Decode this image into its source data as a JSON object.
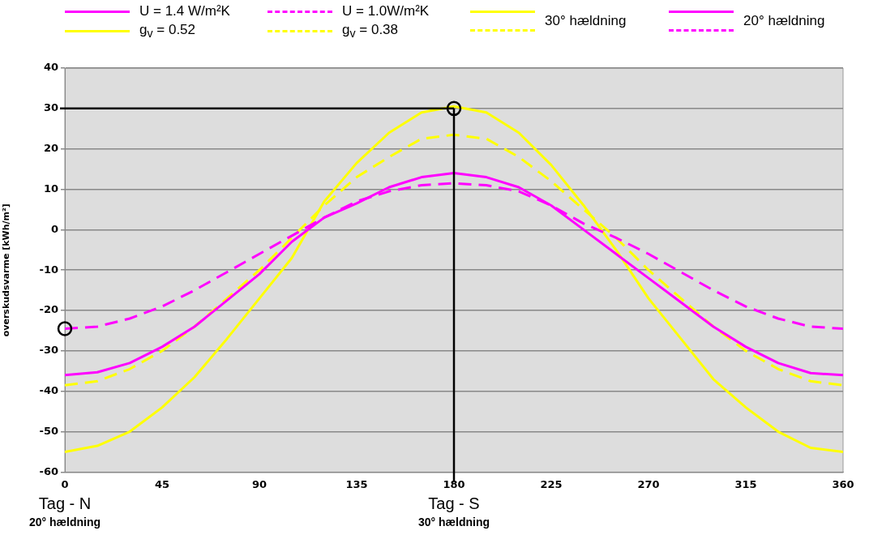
{
  "chart_data": {
    "type": "line",
    "ylabel": "overskudsvarme [kWh/m²]",
    "x": [
      0,
      15,
      30,
      45,
      60,
      75,
      90,
      105,
      120,
      135,
      150,
      165,
      180,
      195,
      210,
      225,
      240,
      255,
      270,
      285,
      300,
      315,
      330,
      345,
      360
    ],
    "series": [
      {
        "name": "U = 1.4 W/m²K",
        "color": "#ff00ff",
        "line_style": "solid",
        "values": [
          -36,
          -35.3,
          -33,
          -29,
          -24,
          -17.5,
          -11,
          -3,
          3,
          6.5,
          10.5,
          13,
          14,
          13,
          10.5,
          6,
          0,
          -6,
          -12,
          -18,
          -24,
          -29,
          -33,
          -35.5,
          -36
        ]
      },
      {
        "name": "U = 1.0W/m²K",
        "color": "#ff00ff",
        "line_style": "dashed",
        "values": [
          -24.5,
          -24,
          -22,
          -19,
          -15,
          -10.5,
          -6,
          -1.5,
          3,
          7,
          9.5,
          11,
          11.5,
          11,
          9.5,
          6,
          1.5,
          -2,
          -6,
          -10.5,
          -15,
          -19,
          -22,
          -24,
          -24.5
        ]
      },
      {
        "name": "g$_{v}$ = 0.52",
        "color": "#ffff00",
        "line_style": "solid",
        "values": [
          -55,
          -53.5,
          -50,
          -44,
          -36.5,
          -27,
          -17,
          -7,
          7,
          16.5,
          24,
          29,
          30.5,
          29,
          24,
          16,
          6,
          -5,
          -17,
          -27,
          -37,
          -44,
          -50,
          -54,
          -55
        ]
      },
      {
        "name": "g$_{v}$ = 0.38",
        "color": "#ffff00",
        "line_style": "dashed",
        "values": [
          -38.5,
          -37.5,
          -34.5,
          -30,
          -24,
          -17,
          -10,
          -2,
          6,
          13,
          18,
          22.5,
          23.5,
          22.5,
          18,
          12,
          5,
          -2,
          -10,
          -17,
          -24,
          -30,
          -34.5,
          -37.5,
          -38.5
        ]
      },
      {
        "type": "scatter",
        "color": "#000000",
        "marker": "circle",
        "x": [
          0,
          180
        ],
        "values": [
          -24.5,
          30
        ]
      }
    ],
    "xlim": [
      0,
      360
    ],
    "xticks": [
      0,
      45,
      90,
      135,
      180,
      225,
      270,
      315,
      360
    ],
    "ylim": [
      -60,
      40
    ],
    "yticks": [
      -60,
      -50,
      -40,
      -30,
      -20,
      -10,
      0,
      10,
      20,
      30,
      40
    ],
    "grid": "y",
    "legend": "top",
    "marker": "none",
    "ref_lines": [
      {
        "axis": "x",
        "value": 180,
        "color": "#000000"
      },
      {
        "axis": "y",
        "value": 30,
        "color": "#000000"
      }
    ],
    "annotations": [
      "30° hældning",
      "20° hældning",
      "Tag - N",
      "20° hældning",
      "Tag - S",
      "30° hældning"
    ]
  }
}
